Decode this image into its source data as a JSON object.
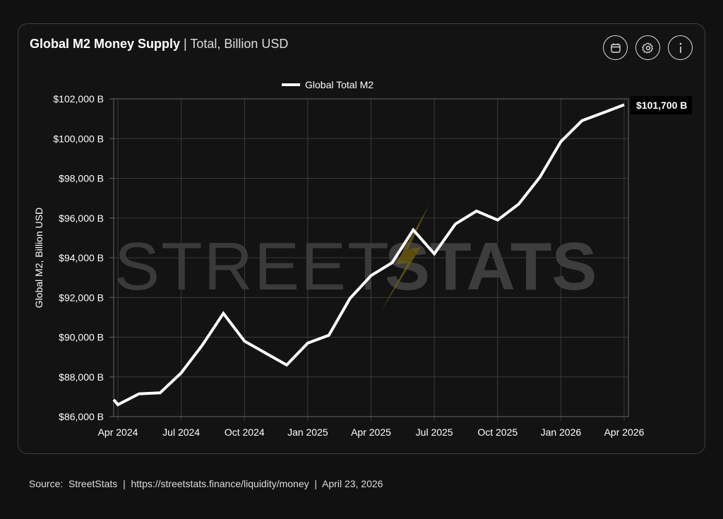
{
  "header": {
    "title_bold": "Global M2 Money Supply",
    "title_rest": " | Total, Billion USD"
  },
  "buttons": [
    {
      "icon": "calendar-icon"
    },
    {
      "icon": "gear-icon"
    },
    {
      "icon": "info-icon"
    }
  ],
  "watermark": {
    "left": "STREET",
    "right": "STATS"
  },
  "chart_data": {
    "type": "line",
    "title": "Global M2 Money Supply | Total, Billion USD",
    "ylabel": "Global M2, Billion USD",
    "xlabel": "",
    "legend": {
      "label": "Global Total M2",
      "placement": "top-center"
    },
    "ylim": [
      86000,
      102000
    ],
    "yticks": [
      86000,
      88000,
      90000,
      92000,
      94000,
      96000,
      98000,
      100000,
      102000
    ],
    "ytick_labels": [
      "$86,000 B",
      "$88,000 B",
      "$90,000 B",
      "$92,000 B",
      "$94,000 B",
      "$96,000 B",
      "$98,000 B",
      "$100,000 B",
      "$102,000 B"
    ],
    "xticks": [
      "Apr 2024",
      "Jul 2024",
      "Oct 2024",
      "Jan 2025",
      "Apr 2025",
      "Jul 2025",
      "Oct 2025",
      "Jan 2026",
      "Apr 2026"
    ],
    "x_unit": "months since Apr 2024",
    "xlim": [
      -0.2,
      24
    ],
    "series": [
      {
        "name": "Global Total M2",
        "color": "#ffffff",
        "x": [
          -0.2,
          0,
          1,
          2,
          3,
          4,
          5,
          6,
          7,
          8,
          9,
          10,
          11,
          12,
          13,
          14,
          15,
          16,
          17,
          18,
          19,
          20,
          21,
          22,
          23,
          24
        ],
        "values": [
          86850,
          86600,
          87150,
          87200,
          88200,
          89600,
          91200,
          89800,
          89200,
          88600,
          89700,
          90100,
          91950,
          93100,
          93750,
          95400,
          94200,
          95700,
          96350,
          95900,
          96700,
          98050,
          99850,
          100900,
          101300,
          101700
        ]
      }
    ],
    "last_value_label": "$101,700 B",
    "grid": true
  },
  "footer": {
    "source_label": "Source:",
    "source": "StreetStats",
    "sep1": "|",
    "url": "https://streetstats.finance/liquidity/money",
    "sep2": "|",
    "date": "April 23, 2026"
  }
}
